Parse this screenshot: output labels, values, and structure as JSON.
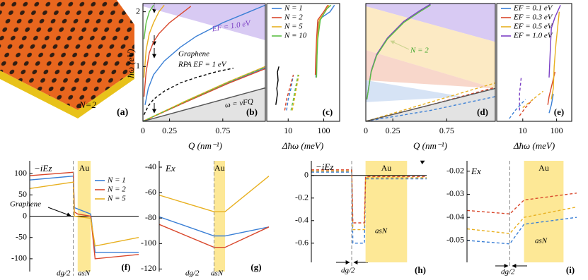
{
  "illustration": {
    "label": "N=2",
    "tag": "(a)"
  },
  "chart_data": [
    {
      "type": "line",
      "tag": "(b)",
      "xlabel": "Q (nm⁻¹)",
      "ylabel": "ħω (eV)",
      "xlim": [
        0,
        1.15
      ],
      "ylim": [
        0,
        2.15
      ],
      "xticks": [
        0,
        0.25,
        0.75
      ],
      "yticks": [
        1,
        2
      ],
      "bands": [
        {
          "color": "#cbb8ef",
          "x": [
            0,
            0,
            1.15,
            1.15
          ],
          "values": [
            2.15,
            2.1,
            1.48,
            2.15
          ]
        },
        {
          "color": "#d9d9d9",
          "x": [
            0,
            1.15,
            1.15
          ],
          "values": [
            0,
            0.61,
            0
          ]
        }
      ],
      "series": [
        {
          "color": "#3a7fd5",
          "dash": false,
          "x": [
            0.02,
            0.05,
            0.1,
            0.2,
            0.35,
            0.5,
            0.75,
            1.0,
            1.15
          ],
          "values": [
            0.3,
            0.6,
            0.85,
            1.1,
            1.35,
            1.55,
            1.8,
            2.0,
            2.12
          ]
        },
        {
          "color": "#d9472b",
          "dash": false,
          "x": [
            0.01,
            0.03,
            0.06,
            0.1,
            0.15,
            0.25,
            0.35,
            0.45
          ],
          "values": [
            0.45,
            0.9,
            1.25,
            1.45,
            1.6,
            1.8,
            1.95,
            2.1
          ]
        },
        {
          "color": "#e8b020",
          "dash": false,
          "x": [
            0.01,
            0.03,
            0.06,
            0.1,
            0.15,
            0.2
          ],
          "values": [
            0.8,
            1.3,
            1.6,
            1.8,
            2.0,
            2.12
          ]
        },
        {
          "color": "#5cc043",
          "dash": false,
          "x": [
            0.01,
            0.03,
            0.06,
            0.1
          ],
          "values": [
            1.5,
            1.8,
            2.0,
            2.12
          ]
        },
        {
          "color": "#3a7fd5",
          "dash": false,
          "x": [
            0,
            0.4,
            0.8,
            1.15
          ],
          "values": [
            0,
            0.36,
            0.7,
            0.98
          ]
        },
        {
          "color": "#d9472b",
          "dash": false,
          "x": [
            0,
            0.4,
            0.8,
            1.15
          ],
          "values": [
            0,
            0.35,
            0.69,
            0.96
          ]
        },
        {
          "color": "#e8b020",
          "dash": false,
          "x": [
            0,
            0.4,
            0.8,
            1.15
          ],
          "values": [
            0,
            0.37,
            0.72,
            1.0
          ]
        },
        {
          "color": "#5cc043",
          "dash": true,
          "x": [
            0,
            0.4,
            0.8,
            1.15
          ],
          "values": [
            0,
            0.36,
            0.71,
            0.99
          ]
        },
        {
          "color": "#000000",
          "dash": true,
          "x": [
            0.01,
            0.05,
            0.1,
            0.2,
            0.35,
            0.5,
            0.7,
            0.85
          ],
          "values": [
            0.12,
            0.28,
            0.4,
            0.55,
            0.7,
            0.8,
            0.91,
            0.97
          ]
        },
        {
          "color": "#555555",
          "dash": false,
          "x": [
            0,
            1.15
          ],
          "values": [
            0,
            0.61
          ]
        }
      ],
      "annotations": [
        {
          "text": "EF = 1.0 eV",
          "color": "#7b3fc4"
        },
        {
          "text": "Graphene",
          "color": "#000000"
        },
        {
          "text": "RPA EF = 1 eV",
          "color": "#000000"
        },
        {
          "text": "ω = vFQ",
          "color": "#000000"
        }
      ]
    },
    {
      "type": "line",
      "tag": "(c)",
      "xlabel": "Δħω (meV)",
      "xlog": true,
      "xlim": [
        2.5,
        280
      ],
      "ylim": [
        0,
        2.15
      ],
      "xticks": [
        10,
        100
      ],
      "series": [
        {
          "name": "N = 1",
          "color": "#3a7fd5",
          "dash": false,
          "x": [
            60,
            62,
            65,
            70,
            90,
            150,
            200
          ],
          "values": [
            0.8,
            1.2,
            1.5,
            1.8,
            1.9,
            2.0,
            2.12
          ]
        },
        {
          "name": "N = 2",
          "color": "#d9472b",
          "dash": false,
          "x": [
            58,
            60,
            63,
            68,
            100,
            130
          ],
          "values": [
            0.85,
            1.2,
            1.5,
            1.85,
            2.0,
            2.12
          ]
        },
        {
          "name": "N = 5",
          "color": "#e8b020",
          "dash": false,
          "x": [
            62,
            64,
            66,
            75,
            110,
            140
          ],
          "values": [
            0.8,
            1.2,
            1.5,
            1.85,
            2.0,
            2.12
          ]
        },
        {
          "name": "N = 10",
          "color": "#5cc043",
          "dash": false,
          "x": [
            63,
            65,
            68,
            80,
            120,
            160
          ],
          "values": [
            0.8,
            1.2,
            1.5,
            1.85,
            2.05,
            2.12
          ]
        },
        {
          "color": "#000000",
          "dash": false,
          "x": [
            4.5,
            5,
            4.8,
            5.2,
            5,
            5.5
          ],
          "values": [
            0.3,
            0.5,
            0.6,
            0.75,
            0.9,
            1.0
          ]
        },
        {
          "color": "#3a7fd5",
          "dash": true,
          "x": [
            9,
            10,
            12,
            14
          ],
          "values": [
            0.2,
            0.4,
            0.6,
            0.85
          ]
        },
        {
          "color": "#d9472b",
          "dash": true,
          "x": [
            8,
            9,
            11,
            14
          ],
          "values": [
            0.2,
            0.4,
            0.6,
            0.85
          ]
        },
        {
          "color": "#e8b020",
          "dash": true,
          "x": [
            13,
            15,
            17,
            20
          ],
          "values": [
            0.2,
            0.4,
            0.6,
            0.85
          ]
        },
        {
          "color": "#5cc043",
          "dash": true,
          "x": [
            12,
            14,
            16,
            19
          ],
          "values": [
            0.2,
            0.4,
            0.6,
            0.85
          ]
        }
      ]
    },
    {
      "type": "line",
      "tag": "(d)",
      "xlabel": "Q (nm⁻¹)",
      "xlim": [
        0,
        1.2
      ],
      "ylim": [
        0,
        2.15
      ],
      "xticks": [
        0,
        0.25,
        0.75
      ],
      "bands": [
        {
          "color": "#cbb8ef",
          "x": [
            0,
            0,
            1.2,
            1.2
          ],
          "values": [
            2.15,
            2.1,
            1.45,
            2.15
          ]
        },
        {
          "color": "#fbe3b0",
          "x": [
            0,
            0,
            1.2,
            1.2
          ],
          "values": [
            1.3,
            2.1,
            1.45,
            0.6
          ]
        },
        {
          "color": "#f6c9b9",
          "x": [
            0,
            0,
            1.2
          ],
          "values": [
            0.75,
            1.3,
            0.6
          ]
        },
        {
          "color": "#c8d9f2",
          "x": [
            0,
            0,
            0.9
          ],
          "values": [
            0.35,
            0.75,
            0.45
          ]
        },
        {
          "color": "#d9d9d9",
          "x": [
            0,
            1.2,
            1.2
          ],
          "values": [
            0,
            0.6,
            0
          ]
        }
      ],
      "series": [
        {
          "color": "#7b3fc4",
          "dash": false,
          "x": [
            0.01,
            0.05,
            0.1,
            0.2,
            0.35,
            0.5,
            0.6
          ],
          "values": [
            0.4,
            0.92,
            1.22,
            1.52,
            1.82,
            2.02,
            2.14
          ]
        },
        {
          "color": "#5cc043",
          "dash": false,
          "x": [
            0.01,
            0.05,
            0.1,
            0.2,
            0.35,
            0.5,
            0.6
          ],
          "values": [
            0.4,
            0.9,
            1.2,
            1.5,
            1.8,
            2.0,
            2.12
          ]
        },
        {
          "color": "#3a7fd5",
          "dash": true,
          "x": [
            0,
            0.6,
            1.2
          ],
          "values": [
            0,
            0.2,
            0.45
          ]
        },
        {
          "color": "#d9472b",
          "dash": true,
          "x": [
            0,
            0.6,
            1.2
          ],
          "values": [
            0,
            0.3,
            0.62
          ]
        },
        {
          "color": "#e8b020",
          "dash": true,
          "x": [
            0,
            0.6,
            1.2
          ],
          "values": [
            0,
            0.35,
            0.7
          ]
        },
        {
          "color": "#555555",
          "dash": false,
          "x": [
            0,
            1.2
          ],
          "values": [
            0,
            0.6
          ]
        }
      ],
      "annotations": [
        {
          "text": "N = 2",
          "color": "#3fa52c"
        }
      ]
    },
    {
      "type": "line",
      "tag": "(e)",
      "xlabel": "Δħω (meV)",
      "xlog": true,
      "xlim": [
        1.7,
        280
      ],
      "ylim": [
        0,
        2.15
      ],
      "xticks": [
        10,
        100
      ],
      "series": [
        {
          "name": "EF = 0.1 eV",
          "color": "#3a7fd5",
          "dash": false,
          "x": [
            60,
            70,
            80
          ],
          "values": [
            0.15,
            0.3,
            0.5
          ]
        },
        {
          "name": "EF = 0.3 eV",
          "color": "#d9472b",
          "dash": false,
          "x": [
            55,
            60,
            75,
            90
          ],
          "values": [
            0.3,
            0.45,
            0.7,
            0.9
          ]
        },
        {
          "name": "EF = 0.5 eV",
          "color": "#e8b020",
          "dash": false,
          "x": [
            70,
            80,
            85,
            95,
            120
          ],
          "values": [
            0.4,
            0.6,
            1.0,
            1.4,
            2.0
          ]
        },
        {
          "name": "EF = 1.0 eV",
          "color": "#7b3fc4",
          "dash": false,
          "x": [
            60,
            65,
            70,
            90,
            130
          ],
          "values": [
            0.8,
            1.3,
            1.7,
            1.9,
            2.12
          ]
        },
        {
          "color": "#7b3fc4",
          "dash": true,
          "x": [
            8,
            8,
            9
          ],
          "values": [
            0.2,
            0.5,
            0.8
          ]
        },
        {
          "color": "#3a7fd5",
          "dash": true,
          "x": [
            4,
            6,
            12
          ],
          "values": [
            0.05,
            0.2,
            0.4
          ]
        },
        {
          "color": "#d9472b",
          "dash": true,
          "x": [
            8,
            12,
            20
          ],
          "values": [
            0.1,
            0.25,
            0.4
          ]
        },
        {
          "color": "#e8b020",
          "dash": true,
          "x": [
            10,
            20,
            40
          ],
          "values": [
            0.25,
            0.4,
            0.55
          ]
        }
      ]
    },
    {
      "type": "line",
      "tag": "(f)",
      "ylabel": "−iEz",
      "zero_line": true,
      "xlim": [
        0,
        1
      ],
      "ylim": [
        -130,
        130
      ],
      "yticks": [
        -100,
        -50,
        0,
        50,
        100
      ],
      "vline": 0.4,
      "highlight": {
        "label": "Au",
        "x": [
          0.44,
          0.56
        ]
      },
      "series": [
        {
          "name": "N = 1",
          "color": "#3a7fd5",
          "dash": false,
          "x": [
            0,
            0.4,
            0.41,
            0.56,
            0.6,
            1
          ],
          "values": [
            85,
            94,
            20,
            5,
            -85,
            -85
          ]
        },
        {
          "name": "N = 2",
          "color": "#d9472b",
          "dash": false,
          "x": [
            0,
            0.4,
            0.41,
            0.44,
            0.56,
            0.6,
            1
          ],
          "values": [
            95,
            103,
            10,
            5,
            0,
            -100,
            -90
          ]
        },
        {
          "name": "N = 5",
          "color": "#e8b020",
          "dash": false,
          "x": [
            0,
            0.4,
            0.41,
            0.56,
            0.6,
            1
          ],
          "values": [
            65,
            80,
            0,
            -5,
            -70,
            -50
          ]
        }
      ],
      "annotations": [
        {
          "text": "Graphene",
          "color": "#000000"
        },
        {
          "text": "dg/2",
          "color": "#000000"
        },
        {
          "text": "asN",
          "color": "#000000"
        }
      ]
    },
    {
      "type": "line",
      "tag": "(g)",
      "ylabel": "Ex",
      "xlim": [
        0,
        1
      ],
      "ylim": [
        -122,
        -35
      ],
      "yticks": [
        -120,
        -100,
        -80,
        -60,
        -40
      ],
      "vline": 0.5,
      "highlight": {
        "label": "Au",
        "x": [
          0.5,
          0.6
        ]
      },
      "series": [
        {
          "color": "#e8b020",
          "dash": false,
          "x": [
            0,
            0.5,
            0.6,
            1
          ],
          "values": [
            -62,
            -75,
            -75,
            -47
          ]
        },
        {
          "color": "#3a7fd5",
          "dash": false,
          "x": [
            0,
            0.5,
            0.6,
            1
          ],
          "values": [
            -79,
            -94,
            -94,
            -87
          ]
        },
        {
          "color": "#d9472b",
          "dash": false,
          "x": [
            0,
            0.5,
            0.6,
            1
          ],
          "values": [
            -85,
            -103,
            -103,
            -87
          ]
        }
      ],
      "annotations": [
        {
          "text": "dg/2",
          "color": "#000000"
        },
        {
          "text": "asN",
          "color": "#000000"
        }
      ]
    },
    {
      "type": "line",
      "tag": "(h)",
      "ylabel": "−iEz",
      "frame": true,
      "zero_line": true,
      "xlim": [
        0,
        1
      ],
      "ylim": [
        -0.77,
        0.13
      ],
      "yticks": [
        -0.6,
        -0.4,
        -0.2,
        0
      ],
      "vline": 0.35,
      "highlight": {
        "label": "Au",
        "x": [
          0.47,
          0.83
        ]
      },
      "series": [
        {
          "color": "#3a7fd5",
          "dash": true,
          "x": [
            0,
            0.35,
            0.36,
            0.46,
            0.47,
            1
          ],
          "values": [
            0.03,
            0.03,
            -0.6,
            -0.6,
            -0.03,
            -0.03
          ]
        },
        {
          "color": "#e8b020",
          "dash": true,
          "x": [
            0,
            0.35,
            0.36,
            0.46,
            0.47,
            1
          ],
          "values": [
            0.04,
            0.04,
            -0.48,
            -0.48,
            -0.02,
            -0.02
          ]
        },
        {
          "color": "#d9472b",
          "dash": true,
          "x": [
            0,
            0.35,
            0.36,
            0.46,
            0.47,
            1
          ],
          "values": [
            0.05,
            0.05,
            -0.42,
            -0.42,
            -0.01,
            -0.01
          ]
        }
      ],
      "annotations": [
        {
          "text": "asN",
          "color": "#000000"
        },
        {
          "text": "dg/2",
          "color": "#000000"
        }
      ]
    },
    {
      "type": "line",
      "tag": "(i)",
      "ylabel": "Ex",
      "frame": true,
      "xlim": [
        0,
        1
      ],
      "ylim": [
        -0.0595,
        -0.0155
      ],
      "yticks": [
        -0.05,
        -0.04,
        -0.03,
        -0.02
      ],
      "vline": 0.39,
      "highlight": {
        "label": "Au",
        "x": [
          0.52,
          0.88
        ]
      },
      "series": [
        {
          "color": "#d9472b",
          "dash": true,
          "x": [
            0,
            0.39,
            0.52,
            1
          ],
          "values": [
            -0.037,
            -0.0385,
            -0.0325,
            -0.0295
          ]
        },
        {
          "color": "#e8b020",
          "dash": true,
          "x": [
            0,
            0.39,
            0.52,
            1
          ],
          "values": [
            -0.045,
            -0.047,
            -0.04,
            -0.0355
          ]
        },
        {
          "color": "#3a7fd5",
          "dash": true,
          "x": [
            0,
            0.39,
            0.52,
            1
          ],
          "values": [
            -0.05,
            -0.0515,
            -0.043,
            -0.04
          ]
        }
      ],
      "annotations": [
        {
          "text": "asN",
          "color": "#000000"
        },
        {
          "text": "dg/2",
          "color": "#000000"
        }
      ]
    }
  ]
}
